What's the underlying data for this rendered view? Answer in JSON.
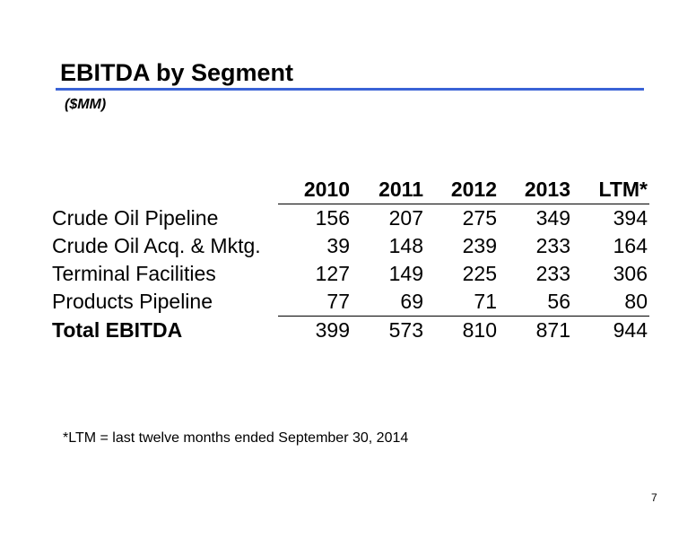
{
  "slide": {
    "title": "EBITDA by Segment",
    "subtitle": "($MM)",
    "footnote": "*LTM = last twelve months ended September 30, 2014",
    "page_number": "7",
    "accent_color": "#3a63d6"
  },
  "table": {
    "columns": [
      "2010",
      "2011",
      "2012",
      "2013",
      "LTM*"
    ],
    "rows": [
      {
        "label": "Crude Oil Pipeline",
        "values": [
          "156",
          "207",
          "275",
          "349",
          "394"
        ]
      },
      {
        "label": "Crude Oil Acq. & Mktg.",
        "values": [
          "39",
          "148",
          "239",
          "233",
          "164"
        ]
      },
      {
        "label": "Terminal Facilities",
        "values": [
          "127",
          "149",
          "225",
          "233",
          "306"
        ]
      },
      {
        "label": "Products Pipeline",
        "values": [
          "77",
          "69",
          "71",
          "56",
          "80"
        ]
      },
      {
        "label": "Total EBITDA",
        "values": [
          "399",
          "573",
          "810",
          "871",
          "944"
        ]
      }
    ]
  }
}
